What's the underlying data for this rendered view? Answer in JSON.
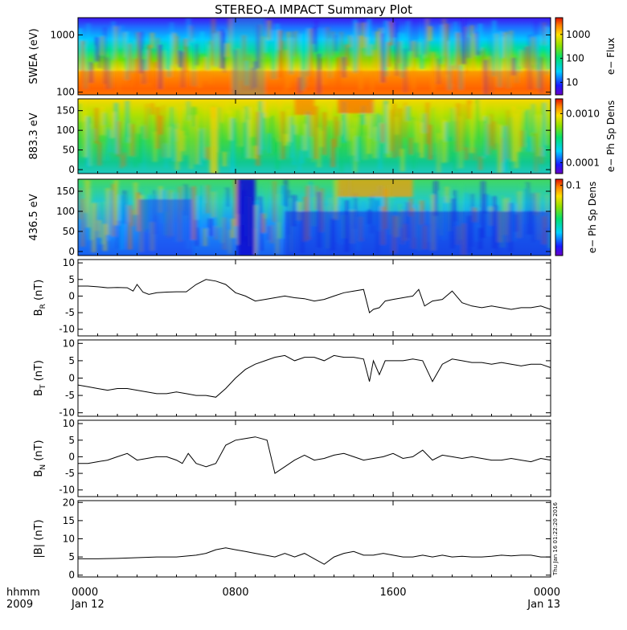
{
  "title": "STEREO-A IMPACT Summary Plot",
  "x_axis": {
    "corner_top": "hhmm",
    "corner_bottom": "2009",
    "ticks": [
      {
        "hour": 0,
        "time": "0000",
        "date": "Jan 12"
      },
      {
        "hour": 8,
        "time": "0800",
        "date": ""
      },
      {
        "hour": 16,
        "time": "1600",
        "date": ""
      },
      {
        "hour": 24,
        "time": "0000",
        "date": "Jan 13"
      }
    ],
    "range_hours": [
      0,
      24
    ]
  },
  "side_stamp": "Thu Jan 16 01:22:20 2016",
  "spectrograms": [
    {
      "id": "swea",
      "ylabel": "SWEA (eV)",
      "yscale": "log",
      "ylim": [
        90,
        2000
      ],
      "yticks": [
        {
          "v": 100,
          "label": "100"
        },
        {
          "v": 1000,
          "label": "1000"
        }
      ],
      "cbar_label": "e− Flux",
      "cbar_scale": "log",
      "cbar_range": [
        3,
        5000
      ],
      "cbar_ticks": [
        {
          "v": 10,
          "label": "10"
        },
        {
          "v": 100,
          "label": "100"
        },
        {
          "v": 1000,
          "label": "1000"
        }
      ]
    },
    {
      "id": "pad883",
      "ylabel": "883.3 eV",
      "yscale": "linear",
      "ylim": [
        -10,
        180
      ],
      "yticks": [
        {
          "v": 0,
          "label": "0"
        },
        {
          "v": 50,
          "label": "50"
        },
        {
          "v": 100,
          "label": "100"
        },
        {
          "v": 150,
          "label": "150"
        }
      ],
      "cbar_label": "e− Ph Sp Dens",
      "cbar_scale": "log",
      "cbar_range": [
        6e-05,
        0.002
      ],
      "cbar_ticks": [
        {
          "v": 0.0001,
          "label": "0.0001"
        },
        {
          "v": 0.001,
          "label": "0.0010"
        }
      ]
    },
    {
      "id": "pad436",
      "ylabel": "436.5 eV",
      "yscale": "linear",
      "ylim": [
        -10,
        180
      ],
      "yticks": [
        {
          "v": 0,
          "label": "0"
        },
        {
          "v": 50,
          "label": "50"
        },
        {
          "v": 100,
          "label": "100"
        },
        {
          "v": 150,
          "label": "150"
        }
      ],
      "cbar_label": "e− Ph Sp Dens",
      "cbar_scale": "log",
      "cbar_range": [
        0.005,
        0.13
      ],
      "cbar_ticks": [
        {
          "v": 0.1,
          "label": "0.1"
        }
      ]
    }
  ],
  "chart_data": {
    "type": "line",
    "x_unit": "hours since 0000 Jan 12 2009",
    "series": [
      {
        "id": "br",
        "name": "B",
        "sub": "R",
        "ylabel_unit": "(nT)",
        "ylim": [
          -12,
          11
        ],
        "yticks": [
          -10,
          -5,
          0,
          5,
          10
        ],
        "x": [
          0,
          0.5,
          1,
          1.5,
          2,
          2.5,
          2.8,
          3,
          3.3,
          3.6,
          4,
          4.5,
          5,
          5.5,
          6,
          6.5,
          7,
          7.5,
          8,
          8.5,
          9,
          9.5,
          10,
          10.5,
          11,
          11.5,
          12,
          12.5,
          13,
          13.5,
          14,
          14.5,
          14.8,
          15,
          15.3,
          15.6,
          16,
          16.5,
          17,
          17.3,
          17.6,
          18,
          18.5,
          19,
          19.5,
          20,
          20.5,
          21,
          21.5,
          22,
          22.5,
          23,
          23.5,
          24
        ],
        "y": [
          3,
          3,
          2.8,
          2.5,
          2.6,
          2.5,
          1.5,
          3.5,
          1.2,
          0.5,
          1,
          1.2,
          1.3,
          1.3,
          3.5,
          5,
          4.5,
          3.5,
          1,
          0,
          -1.5,
          -1,
          -0.5,
          0,
          -0.5,
          -0.8,
          -1.5,
          -1,
          0,
          1,
          1.5,
          2,
          -5,
          -4,
          -3.5,
          -1.5,
          -1,
          -0.5,
          0,
          2,
          -3,
          -1.5,
          -1,
          1.5,
          -2,
          -3,
          -3.5,
          -3,
          -3.5,
          -4,
          -3.5,
          -3.5,
          -3,
          -4
        ]
      },
      {
        "id": "bt",
        "name": "B",
        "sub": "T",
        "ylabel_unit": "(nT)",
        "ylim": [
          -11,
          11
        ],
        "yticks": [
          -10,
          -5,
          0,
          5,
          10
        ],
        "x": [
          0,
          0.5,
          1,
          1.5,
          2,
          2.5,
          3,
          3.5,
          4,
          4.5,
          5,
          5.5,
          6,
          6.5,
          7,
          7.5,
          8,
          8.5,
          9,
          9.5,
          10,
          10.5,
          11,
          11.5,
          12,
          12.5,
          13,
          13.5,
          14,
          14.5,
          14.8,
          15,
          15.3,
          15.6,
          16,
          16.5,
          17,
          17.5,
          18,
          18.5,
          19,
          19.5,
          20,
          20.5,
          21,
          21.5,
          22,
          22.5,
          23,
          23.5,
          24
        ],
        "y": [
          -2,
          -2.5,
          -3,
          -3.5,
          -3,
          -3,
          -3.5,
          -4,
          -4.5,
          -4.5,
          -4,
          -4.5,
          -5,
          -5,
          -5.5,
          -3,
          0,
          2.5,
          4,
          5,
          6,
          6.5,
          5,
          6,
          6,
          5,
          6.5,
          6,
          6,
          5.5,
          -1,
          5,
          1,
          5,
          5,
          5,
          5.5,
          5,
          -1,
          4,
          5.5,
          5,
          4.5,
          4.5,
          4,
          4.5,
          4,
          3.5,
          4,
          4,
          3
        ]
      },
      {
        "id": "bn",
        "name": "B",
        "sub": "N",
        "ylabel_unit": "(nT)",
        "ylim": [
          -12,
          11
        ],
        "yticks": [
          -10,
          -5,
          0,
          5,
          10
        ],
        "x": [
          0,
          0.5,
          1,
          1.5,
          2,
          2.5,
          3,
          3.5,
          4,
          4.5,
          5,
          5.3,
          5.6,
          6,
          6.5,
          7,
          7.5,
          8,
          8.5,
          9,
          9.3,
          9.6,
          10,
          10.5,
          11,
          11.5,
          12,
          12.5,
          13,
          13.5,
          14,
          14.5,
          15,
          15.5,
          16,
          16.5,
          17,
          17.5,
          18,
          18.5,
          19,
          19.5,
          20,
          20.5,
          21,
          21.5,
          22,
          22.5,
          23,
          23.5,
          24
        ],
        "y": [
          -2,
          -2,
          -1.5,
          -1,
          0,
          1,
          -1,
          -0.5,
          0,
          0,
          -1,
          -2,
          1,
          -2,
          -3,
          -2,
          3.5,
          5,
          5.5,
          6,
          5.5,
          5,
          -5,
          -3,
          -1,
          0.5,
          -1,
          -0.5,
          0.5,
          1,
          0,
          -1,
          -0.5,
          0,
          1,
          -0.5,
          0,
          2,
          -1,
          0.5,
          0,
          -0.5,
          0,
          -0.5,
          -1,
          -1,
          -0.5,
          -1,
          -1.5,
          -0.5,
          -1
        ]
      },
      {
        "id": "bmag",
        "name": "|B|",
        "sub": "",
        "ylabel_unit": "(nT)",
        "ylim": [
          -0.5,
          20.5
        ],
        "yticks": [
          0,
          5,
          10,
          15,
          20
        ],
        "x": [
          0,
          1,
          2,
          3,
          4,
          5,
          6,
          6.5,
          7,
          7.5,
          8,
          8.5,
          9,
          9.5,
          10,
          10.5,
          11,
          11.5,
          12,
          12.5,
          13,
          13.5,
          14,
          14.5,
          15,
          15.5,
          16,
          16.5,
          17,
          17.5,
          18,
          18.5,
          19,
          19.5,
          20,
          20.5,
          21,
          21.5,
          22,
          22.5,
          23,
          23.5,
          24
        ],
        "y": [
          4.5,
          4.5,
          4.6,
          4.8,
          5,
          5,
          5.5,
          6,
          7,
          7.5,
          7,
          6.5,
          6,
          5.5,
          5,
          6,
          5,
          6,
          4.5,
          3,
          5,
          6,
          6.5,
          5.5,
          5.5,
          6,
          5.5,
          5,
          5,
          5.5,
          5,
          5.5,
          5,
          5.2,
          5,
          5,
          5.2,
          5.5,
          5.3,
          5.5,
          5.5,
          5,
          5
        ]
      }
    ]
  }
}
